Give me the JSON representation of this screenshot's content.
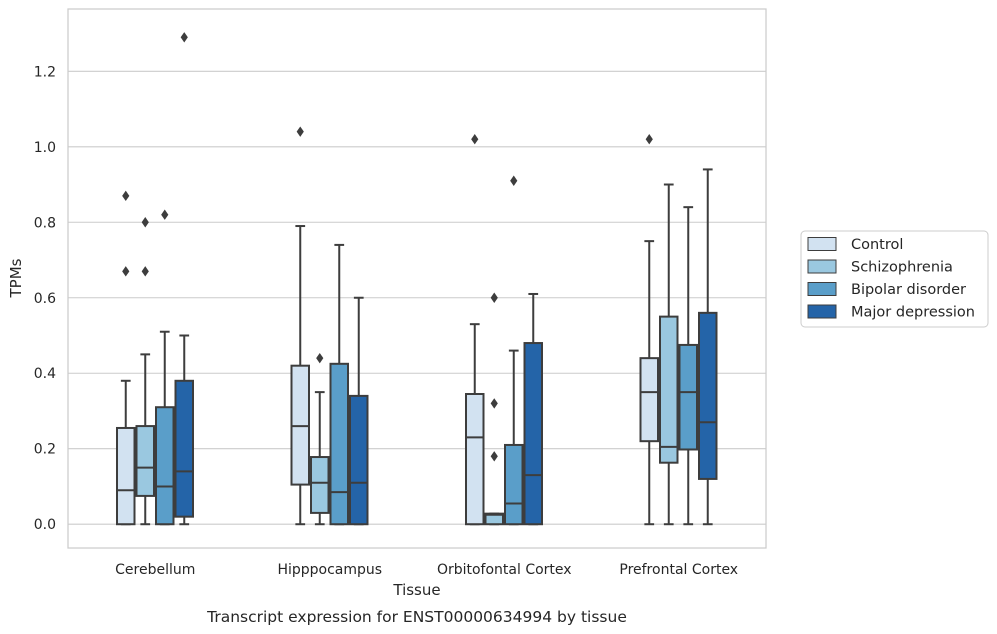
{
  "chart_data": {
    "type": "box",
    "title": "Transcript expression for ENST00000634994 by tissue",
    "xlabel": "Tissue",
    "ylabel": "TPMs",
    "ylim": [
      -0.063,
      1.365
    ],
    "yticks": [
      0.0,
      0.2,
      0.4,
      0.6,
      0.8,
      1.0,
      1.2
    ],
    "ytick_labels": [
      "0.0",
      "0.2",
      "0.4",
      "0.6",
      "0.8",
      "1.0",
      "1.2"
    ],
    "grid": true,
    "legend_position": "right",
    "categories": [
      "Cerebellum",
      "Hipppocampus",
      "Orbitofontal Cortex",
      "Prefrontal Cortex"
    ],
    "series": [
      {
        "name": "Control",
        "color": "#d2e2f1",
        "boxes": [
          {
            "whislo": 0.0,
            "q1": 0.0,
            "med": 0.09,
            "q3": 0.255,
            "whishi": 0.38,
            "fliers": [
              0.67,
              0.87
            ]
          },
          {
            "whislo": 0.0,
            "q1": 0.105,
            "med": 0.26,
            "q3": 0.42,
            "whishi": 0.79,
            "fliers": [
              1.04
            ]
          },
          {
            "whislo": 0.0,
            "q1": 0.0,
            "med": 0.23,
            "q3": 0.345,
            "whishi": 0.53,
            "fliers": [
              1.02
            ]
          },
          {
            "whislo": 0.0,
            "q1": 0.22,
            "med": 0.35,
            "q3": 0.44,
            "whishi": 0.75,
            "fliers": [
              1.02
            ]
          }
        ]
      },
      {
        "name": "Schizophrenia",
        "color": "#9ac8e0",
        "boxes": [
          {
            "whislo": 0.0,
            "q1": 0.075,
            "med": 0.15,
            "q3": 0.26,
            "whishi": 0.45,
            "fliers": [
              0.67,
              0.8
            ]
          },
          {
            "whislo": 0.0,
            "q1": 0.03,
            "med": 0.11,
            "q3": 0.178,
            "whishi": 0.35,
            "fliers": [
              0.44
            ]
          },
          {
            "whislo": 0.0,
            "q1": 0.0,
            "med": 0.025,
            "q3": 0.028,
            "whishi": 0.028,
            "fliers": [
              0.18,
              0.32,
              0.6
            ]
          },
          {
            "whislo": 0.0,
            "q1": 0.163,
            "med": 0.205,
            "q3": 0.55,
            "whishi": 0.9,
            "fliers": []
          }
        ]
      },
      {
        "name": "Bipolar disorder",
        "color": "#5a9ec9",
        "boxes": [
          {
            "whislo": 0.0,
            "q1": 0.0,
            "med": 0.1,
            "q3": 0.31,
            "whishi": 0.51,
            "fliers": [
              0.82
            ]
          },
          {
            "whislo": 0.0,
            "q1": 0.0,
            "med": 0.085,
            "q3": 0.425,
            "whishi": 0.74,
            "fliers": []
          },
          {
            "whislo": 0.0,
            "q1": 0.0,
            "med": 0.055,
            "q3": 0.21,
            "whishi": 0.46,
            "fliers": [
              0.91
            ]
          },
          {
            "whislo": 0.0,
            "q1": 0.198,
            "med": 0.35,
            "q3": 0.475,
            "whishi": 0.84,
            "fliers": []
          }
        ]
      },
      {
        "name": "Major depression",
        "color": "#2464a8",
        "boxes": [
          {
            "whislo": 0.0,
            "q1": 0.02,
            "med": 0.14,
            "q3": 0.38,
            "whishi": 0.5,
            "fliers": [
              1.29
            ]
          },
          {
            "whislo": 0.0,
            "q1": 0.0,
            "med": 0.11,
            "q3": 0.34,
            "whishi": 0.6,
            "fliers": []
          },
          {
            "whislo": 0.0,
            "q1": 0.0,
            "med": 0.13,
            "q3": 0.48,
            "whishi": 0.61,
            "fliers": []
          },
          {
            "whislo": 0.0,
            "q1": 0.12,
            "med": 0.27,
            "q3": 0.56,
            "whishi": 0.94,
            "fliers": []
          }
        ]
      }
    ]
  }
}
